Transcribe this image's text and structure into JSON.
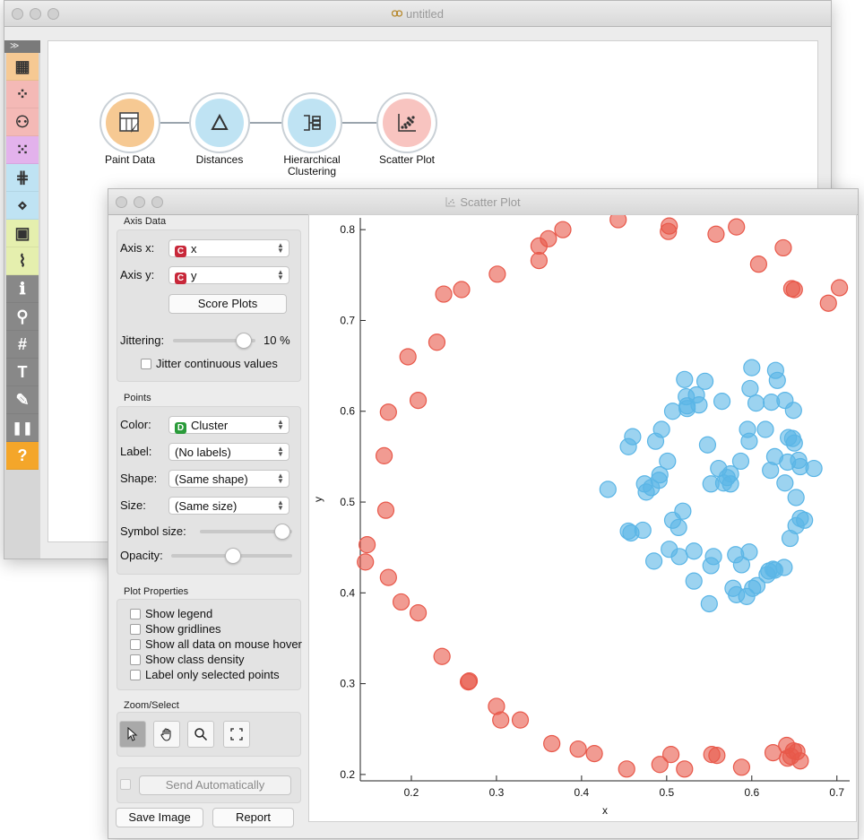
{
  "main_window": {
    "title": "untitled",
    "toolbox_header": "≫",
    "toolbox": [
      {
        "icon": "data-table-icon",
        "color": "#f6c993"
      },
      {
        "icon": "scatter-plot-icon",
        "color": "#f4b9b6"
      },
      {
        "icon": "tree-icon",
        "color": "#f4b9b6"
      },
      {
        "icon": "scatter-dots-icon",
        "color": "#e3b2ec"
      },
      {
        "icon": "distance-matrix-icon",
        "color": "#bfe3f3"
      },
      {
        "icon": "distance-icon",
        "color": "#bfe3f3"
      },
      {
        "icon": "image-icon",
        "color": "#e5efae"
      },
      {
        "icon": "dna-icon",
        "color": "#e5efae"
      },
      {
        "icon": "info-icon",
        "color": "#888888"
      },
      {
        "icon": "search-icon",
        "color": "#888888"
      },
      {
        "icon": "hash-icon",
        "color": "#888888"
      },
      {
        "icon": "text-icon",
        "color": "#888888"
      },
      {
        "icon": "pen-icon",
        "color": "#888888"
      },
      {
        "icon": "pause-icon",
        "color": "#888888"
      },
      {
        "icon": "help-icon",
        "color": "#f4a62a"
      }
    ],
    "nodes": [
      {
        "label": "Paint Data",
        "color": "#f6c993"
      },
      {
        "label": "Distances",
        "color": "#bfe3f3"
      },
      {
        "label": "Hierarchical\nClustering",
        "color": "#bfe3f3"
      },
      {
        "label": "Scatter Plot",
        "color": "#f8c4c0"
      }
    ]
  },
  "scatter_window": {
    "title": "Scatter Plot",
    "axis_data": {
      "title": "Axis Data",
      "axis_x_label": "Axis x:",
      "axis_x_value": "x",
      "axis_x_badge": "C",
      "axis_y_label": "Axis y:",
      "axis_y_value": "y",
      "axis_y_badge": "C",
      "score_plots": "Score Plots",
      "jittering_label": "Jittering:",
      "jittering_value": "10 %",
      "jittering_level": 0.85,
      "jitter_continuous": "Jitter continuous values"
    },
    "points": {
      "title": "Points",
      "color_label": "Color:",
      "color_value": "Cluster",
      "color_badge": "D",
      "label_label": "Label:",
      "label_value": "(No labels)",
      "shape_label": "Shape:",
      "shape_value": "(Same shape)",
      "size_label": "Size:",
      "size_value": "(Same size)",
      "symbol_size_label": "Symbol size:",
      "symbol_size_level": 0.88,
      "opacity_label": "Opacity:",
      "opacity_level": 0.5
    },
    "plot_properties": {
      "title": "Plot Properties",
      "options": [
        "Show legend",
        "Show gridlines",
        "Show all data on mouse hover",
        "Show class density",
        "Label only selected points"
      ]
    },
    "zoom_select": {
      "title": "Zoom/Select",
      "tools": [
        "select-tool-icon",
        "pan-tool-icon",
        "zoom-tool-icon",
        "reset-zoom-icon"
      ]
    },
    "send_automatically": "Send Automatically",
    "save_image": "Save Image",
    "report": "Report"
  },
  "chart_data": {
    "type": "scatter",
    "xlabel": "x",
    "ylabel": "y",
    "xlim": [
      0.14,
      0.715
    ],
    "ylim": [
      0.193,
      0.813
    ],
    "xticks": [
      0.2,
      0.3,
      0.4,
      0.5,
      0.6,
      0.7
    ],
    "yticks": [
      0.2,
      0.3,
      0.4,
      0.5,
      0.6,
      0.7,
      0.8
    ],
    "grid": false,
    "series": [
      {
        "color": "#e8584a",
        "x": [
          0.443,
          0.503,
          0.502,
          0.558,
          0.582,
          0.608,
          0.637,
          0.647,
          0.65,
          0.69,
          0.703,
          0.378,
          0.361,
          0.35,
          0.35,
          0.301,
          0.259,
          0.238,
          0.23,
          0.196,
          0.208,
          0.173,
          0.168,
          0.17,
          0.148,
          0.146,
          0.173,
          0.188,
          0.208,
          0.236,
          0.268,
          0.267,
          0.3,
          0.305,
          0.328,
          0.365,
          0.396,
          0.415,
          0.453,
          0.492,
          0.505,
          0.521,
          0.553,
          0.559,
          0.588,
          0.625,
          0.641,
          0.642,
          0.649,
          0.653,
          0.646,
          0.657
        ],
        "y": [
          0.811,
          0.804,
          0.798,
          0.795,
          0.803,
          0.762,
          0.78,
          0.735,
          0.734,
          0.719,
          0.736,
          0.8,
          0.79,
          0.782,
          0.766,
          0.751,
          0.734,
          0.729,
          0.676,
          0.66,
          0.612,
          0.599,
          0.551,
          0.491,
          0.453,
          0.434,
          0.417,
          0.39,
          0.378,
          0.33,
          0.303,
          0.302,
          0.275,
          0.26,
          0.26,
          0.234,
          0.228,
          0.223,
          0.206,
          0.211,
          0.222,
          0.206,
          0.222,
          0.221,
          0.208,
          0.224,
          0.232,
          0.218,
          0.226,
          0.225,
          0.22,
          0.215
        ]
      },
      {
        "color": "#5ab5e6",
        "x": [
          0.521,
          0.545,
          0.523,
          0.524,
          0.535,
          0.6,
          0.598,
          0.628,
          0.63,
          0.639,
          0.507,
          0.494,
          0.524,
          0.538,
          0.565,
          0.605,
          0.623,
          0.649,
          0.648,
          0.46,
          0.455,
          0.487,
          0.474,
          0.587,
          0.561,
          0.567,
          0.575,
          0.548,
          0.595,
          0.616,
          0.627,
          0.643,
          0.65,
          0.655,
          0.642,
          0.622,
          0.639,
          0.657,
          0.673,
          0.652,
          0.482,
          0.501,
          0.491,
          0.492,
          0.571,
          0.575,
          0.431,
          0.476,
          0.597,
          0.552,
          0.519,
          0.507,
          0.514,
          0.532,
          0.555,
          0.472,
          0.455,
          0.458,
          0.485,
          0.503,
          0.515,
          0.552,
          0.581,
          0.588,
          0.597,
          0.606,
          0.62,
          0.625,
          0.638,
          0.645,
          0.652,
          0.657,
          0.662,
          0.601,
          0.618,
          0.627,
          0.578,
          0.532,
          0.55,
          0.582,
          0.594
        ],
        "y": [
          0.635,
          0.633,
          0.616,
          0.606,
          0.618,
          0.648,
          0.625,
          0.645,
          0.634,
          0.612,
          0.6,
          0.58,
          0.603,
          0.607,
          0.611,
          0.609,
          0.61,
          0.601,
          0.57,
          0.572,
          0.561,
          0.567,
          0.52,
          0.545,
          0.537,
          0.521,
          0.531,
          0.563,
          0.58,
          0.58,
          0.55,
          0.571,
          0.565,
          0.546,
          0.544,
          0.535,
          0.521,
          0.539,
          0.537,
          0.505,
          0.516,
          0.545,
          0.524,
          0.53,
          0.527,
          0.52,
          0.514,
          0.511,
          0.567,
          0.52,
          0.49,
          0.48,
          0.472,
          0.446,
          0.44,
          0.469,
          0.468,
          0.466,
          0.435,
          0.448,
          0.44,
          0.43,
          0.442,
          0.431,
          0.445,
          0.408,
          0.424,
          0.426,
          0.428,
          0.46,
          0.474,
          0.482,
          0.48,
          0.405,
          0.42,
          0.425,
          0.405,
          0.413,
          0.388,
          0.398,
          0.396
        ]
      }
    ]
  }
}
